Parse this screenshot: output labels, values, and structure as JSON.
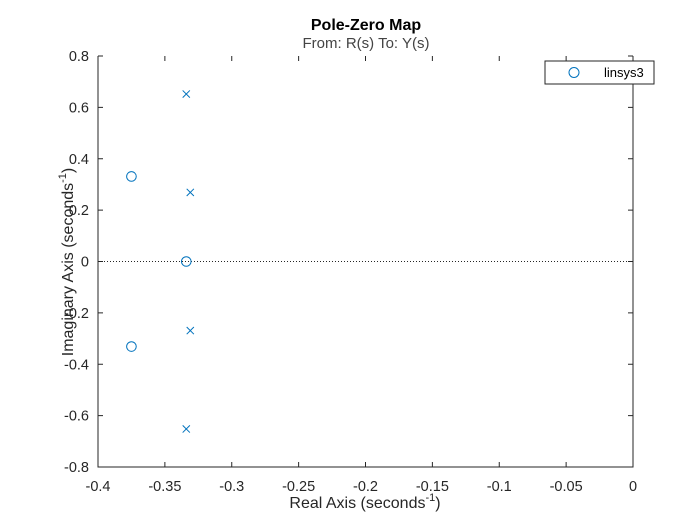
{
  "chart_data": {
    "type": "scatter",
    "title": "Pole-Zero Map",
    "subtitle": "From: R(s)  To: Y(s)",
    "xlabel": "Real Axis (seconds",
    "ylabel": "Imaginary Axis (seconds",
    "axis_unit_exponent": "-1",
    "xlim": [
      -0.4,
      0
    ],
    "ylim": [
      -0.8,
      0.8
    ],
    "xticks": [
      -0.4,
      -0.35,
      -0.3,
      -0.25,
      -0.2,
      -0.15,
      -0.1,
      -0.05,
      0
    ],
    "xtick_labels": [
      "-0.4",
      "-0.35",
      "-0.3",
      "-0.25",
      "-0.2",
      "-0.15",
      "-0.1",
      "-0.05",
      "0"
    ],
    "yticks": [
      -0.8,
      -0.6,
      -0.4,
      -0.2,
      0,
      0.2,
      0.4,
      0.6,
      0.8
    ],
    "ytick_labels": [
      "-0.8",
      "-0.6",
      "-0.4",
      "-0.2",
      "0",
      "0.2",
      "0.4",
      "0.6",
      "0.8"
    ],
    "grid": false,
    "zero_line": true,
    "legend_position": "top-right",
    "series": [
      {
        "name": "linsys3",
        "color": "#0072BD",
        "poles": [
          {
            "x": -0.334,
            "y": 0.652
          },
          {
            "x": -0.331,
            "y": 0.269
          },
          {
            "x": -0.331,
            "y": -0.269
          },
          {
            "x": -0.334,
            "y": -0.652
          }
        ],
        "zeros": [
          {
            "x": -0.375,
            "y": 0.331
          },
          {
            "x": -0.334,
            "y": 0.0
          },
          {
            "x": -0.375,
            "y": -0.331
          }
        ]
      }
    ]
  }
}
